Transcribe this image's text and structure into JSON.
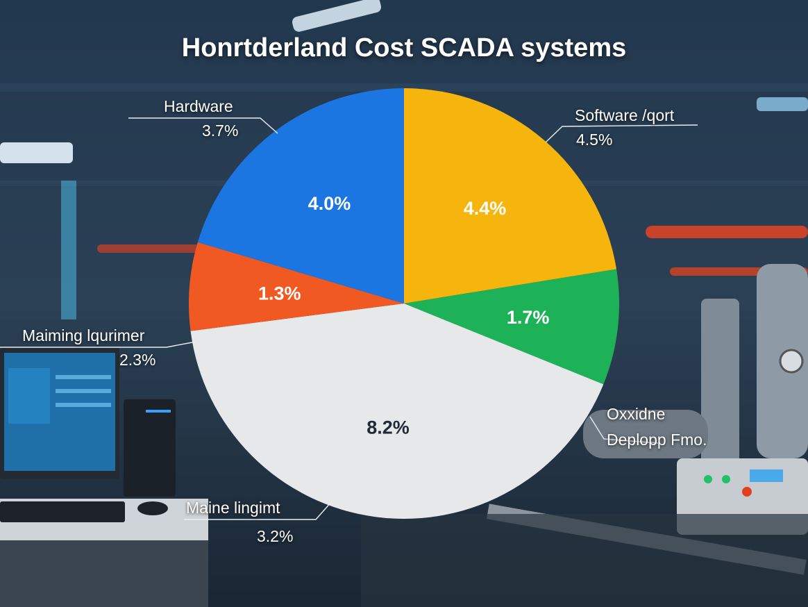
{
  "chart_data": {
    "type": "pie",
    "title": "Honrtderland Cost SCADA systems",
    "slice_values": [
      {
        "label": "4.4%",
        "value": 4.4,
        "color": "#f5b50c"
      },
      {
        "label": "1.7%",
        "value": 1.7,
        "color": "#1db257"
      },
      {
        "label": "8.2%",
        "value": 8.2,
        "color": "#e6e8ea"
      },
      {
        "label": "1.3%",
        "value": 1.3,
        "color": "#f05a22"
      },
      {
        "label": "4.0%",
        "value": 4.0,
        "color": "#1c76e2"
      }
    ],
    "callouts": [
      {
        "name": "Hardware",
        "value": "3.7%"
      },
      {
        "name": "Software /qort",
        "value": "4.5%"
      },
      {
        "name": "Maiming lqurimer",
        "value": "2.3%"
      },
      {
        "name": "Oxxidne",
        "value": "Deplopp Fmo."
      },
      {
        "name": "Maine lingimt",
        "value": "3.2%"
      }
    ],
    "legend": "none",
    "grid": false
  }
}
